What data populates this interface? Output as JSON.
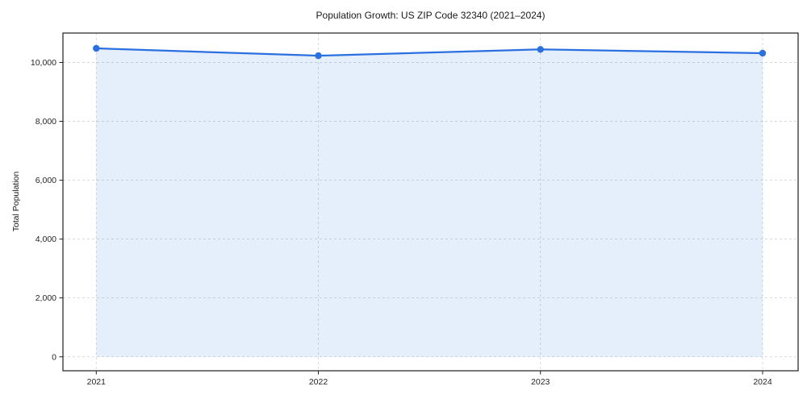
{
  "chart_data": {
    "type": "area",
    "title": "Population Growth: US ZIP Code 32340 (2021–2024)",
    "ylabel": "Total Population",
    "xlabel": "",
    "x": [
      2021,
      2022,
      2023,
      2024
    ],
    "series": [
      {
        "name": "Total Population",
        "values": [
          10480,
          10230,
          10445,
          10315
        ]
      }
    ],
    "baseline": 0,
    "xlim": [
      2020.85,
      2024.16
    ],
    "ylim": [
      -475,
      11000
    ],
    "xticks": {
      "values": [
        2021,
        2022,
        2023,
        2024
      ],
      "labels": [
        "2021",
        "2022",
        "2023",
        "2024"
      ]
    },
    "yticks": {
      "values": [
        0,
        2000,
        4000,
        6000,
        8000,
        10000
      ],
      "labels": [
        "0",
        "2,000",
        "4,000",
        "6,000",
        "8,000",
        "10,000"
      ]
    },
    "grid": true,
    "legend": false,
    "colors": {
      "line": "#2b70e0",
      "marker": "#2b70e0",
      "fill": "rgba(43,112,224,0.12)",
      "grid": "#d6d6d6",
      "spine": "#1f1f1f",
      "tick_text": "#262626"
    }
  }
}
